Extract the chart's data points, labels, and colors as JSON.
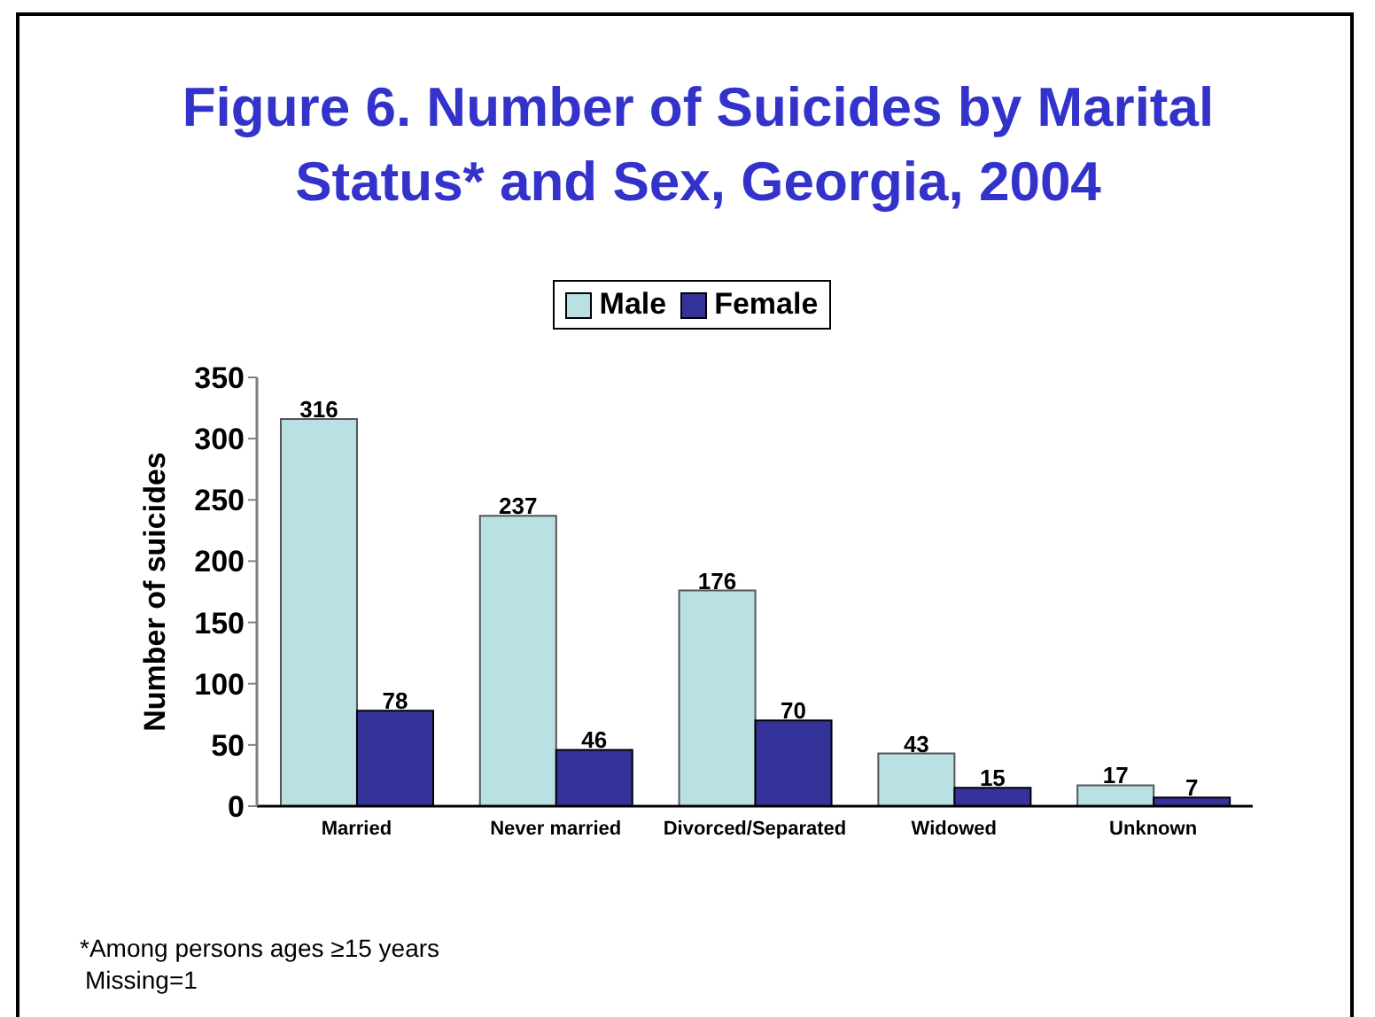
{
  "chart_data": {
    "type": "bar",
    "title": "Figure 6. Number of Suicides by Marital Status* and Sex, Georgia, 2004",
    "ylabel": "Number of suicides",
    "categories": [
      "Married",
      "Never married",
      "Divorced/Separated",
      "Widowed",
      "Unknown"
    ],
    "series": [
      {
        "name": "Male",
        "color": "#b9e1e4",
        "values": [
          316,
          237,
          176,
          43,
          17
        ]
      },
      {
        "name": "Female",
        "color": "#333399",
        "values": [
          78,
          46,
          70,
          15,
          7
        ]
      }
    ],
    "ylim": [
      0,
      350
    ],
    "yticks": [
      0,
      50,
      100,
      150,
      200,
      250,
      300,
      350
    ],
    "legend": "top",
    "data_labels": true,
    "annotations": [
      "*Among persons ages ≥15 years",
      "Missing=1"
    ]
  }
}
